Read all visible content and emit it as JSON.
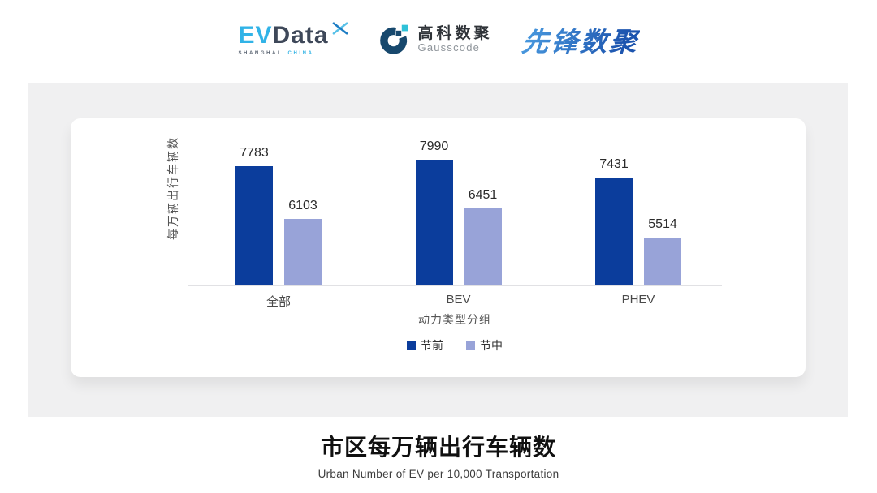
{
  "header": {
    "evdata_logo": {
      "ev": "EV",
      "data": "Data",
      "sub_left": "SHANGHAI",
      "sub_right": "CHINA"
    },
    "gausscode_logo": {
      "cn": "高科数聚",
      "en": "Gausscode"
    },
    "pioneer_logo": {
      "text": "先锋数聚"
    }
  },
  "chart_data": {
    "type": "bar",
    "categories": [
      "全部",
      "BEV",
      "PHEV"
    ],
    "series": [
      {
        "name": "节前",
        "color": "#0b3d9c",
        "values": [
          7783,
          7990,
          7431
        ]
      },
      {
        "name": "节中",
        "color": "#98a3d8",
        "values": [
          6103,
          6451,
          5514
        ]
      }
    ],
    "xlabel": "动力类型分组",
    "ylabel": "每万辆出行车辆数",
    "ylim": [
      4000,
      8800
    ],
    "grid": false,
    "y_ticks_visible": false,
    "value_labels": true,
    "legend_position": "bottom"
  },
  "footer": {
    "title": "市区每万辆出行车辆数",
    "subtitle": "Urban Number of EV per 10,000 Transportation"
  },
  "colors": {
    "series_pre_holiday": "#0b3d9c",
    "series_during_holiday": "#98a3d8",
    "panel_background": "#f0f0f1",
    "axis_line": "#e1e1e4",
    "evdata_blue": "#31b3e7",
    "evdata_slate": "#3e4859",
    "gausscode_dark": "#17486d",
    "gausscode_cyan": "#2fc1d8",
    "pioneer_blue": "#2b6ec5"
  }
}
